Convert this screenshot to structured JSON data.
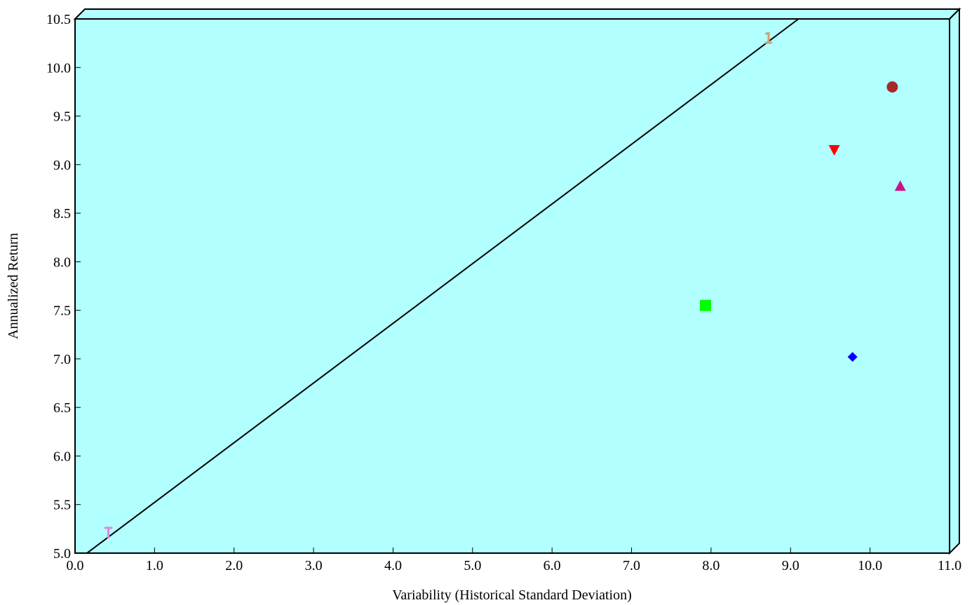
{
  "chart_data": {
    "type": "scatter",
    "title": "",
    "xlabel": "Variability (Historical Standard Deviation)",
    "ylabel": "Annualized Return",
    "xlim": [
      0.0,
      11.0
    ],
    "ylim": [
      5.0,
      10.5
    ],
    "x_ticks": [
      "0.0",
      "1.0",
      "2.0",
      "3.0",
      "4.0",
      "5.0",
      "6.0",
      "7.0",
      "8.0",
      "9.0",
      "10.0",
      "11.0"
    ],
    "y_ticks": [
      "5.0",
      "5.5",
      "6.0",
      "6.5",
      "7.0",
      "7.5",
      "8.0",
      "8.5",
      "9.0",
      "9.5",
      "10.0",
      "10.5"
    ],
    "grid": false,
    "background_color": "#b2ffff",
    "line": {
      "from": [
        0.15,
        5.0
      ],
      "to": [
        9.1,
        10.5
      ],
      "color": "#000000"
    },
    "points": [
      {
        "x": 10.28,
        "y": 9.8,
        "marker": "circle",
        "color": "#a52a2a"
      },
      {
        "x": 9.55,
        "y": 9.15,
        "marker": "triangle-down",
        "color": "#ff0000"
      },
      {
        "x": 10.38,
        "y": 8.78,
        "marker": "triangle-up",
        "color": "#c71585"
      },
      {
        "x": 7.93,
        "y": 7.55,
        "marker": "square",
        "color": "#00ff00"
      },
      {
        "x": 9.78,
        "y": 7.02,
        "marker": "diamond",
        "color": "#0000ff"
      },
      {
        "x": 0.42,
        "y": 5.21,
        "marker": "text",
        "label": "T",
        "color": "#dd88dd"
      },
      {
        "x": 8.72,
        "y": 10.3,
        "marker": "text",
        "label": "1",
        "color": "#d2a070"
      }
    ]
  }
}
